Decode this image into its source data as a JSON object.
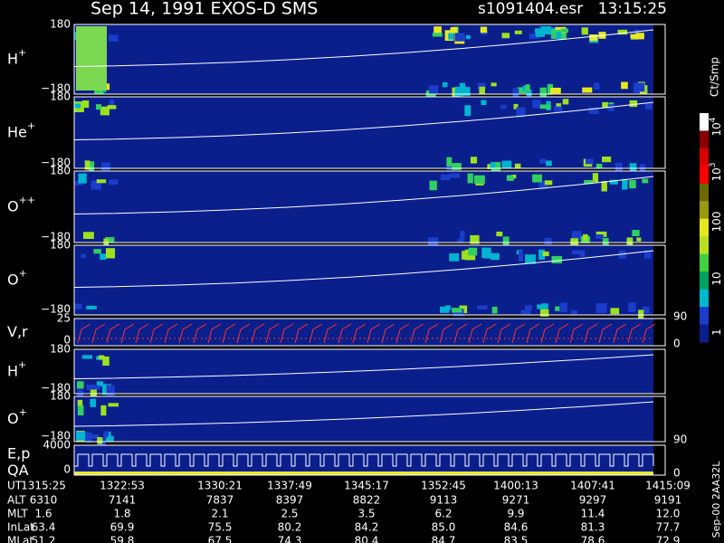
{
  "header": {
    "title": "Sep 14, 1991   EXOS-D SMS",
    "file": "s1091404.esr",
    "time": "13:15:25"
  },
  "panels": [
    {
      "label": "H",
      "sup": "+",
      "top": "180",
      "bottom": "−180"
    },
    {
      "label": "He",
      "sup": "+",
      "top": "180",
      "bottom": "−180"
    },
    {
      "label": "O",
      "sup": "++",
      "top": "180",
      "bottom": "−180"
    },
    {
      "label": "O",
      "sup": "+",
      "top": "180",
      "bottom": "−180"
    },
    {
      "label": "V,r",
      "top": "25",
      "bottom": "0",
      "right_top": "90",
      "right_bottom": "0"
    },
    {
      "label": "H",
      "sup": "+",
      "top": "180",
      "bottom": "−180"
    },
    {
      "label": "O",
      "sup": "+",
      "top": "180",
      "bottom": "−180",
      "right_bottom": "90"
    },
    {
      "label": "E,p",
      "label2": "QA",
      "top": "4000",
      "bottom": "0",
      "right_bottom": "0"
    }
  ],
  "colorbar": {
    "unit": "Ct/Smp",
    "labels": [
      {
        "base": "10",
        "exp": "4"
      },
      {
        "base": "10",
        "exp": "3"
      },
      "100",
      "10",
      "1"
    ]
  },
  "ephemeris": {
    "rows": [
      {
        "name": "UT",
        "values": [
          "1315:25",
          "1322:53",
          "1330:21",
          "1337:49",
          "1345:17",
          "1352:45",
          "1400:13",
          "1407:41",
          "1415:09"
        ]
      },
      {
        "name": "ALT",
        "values": [
          "6310",
          "7141",
          "7837",
          "8397",
          "8822",
          "9113",
          "9271",
          "9297",
          "9191"
        ]
      },
      {
        "name": "MLT",
        "values": [
          "1.6",
          "1.8",
          "2.1",
          "2.5",
          "3.5",
          "6.2",
          "9.9",
          "11.4",
          "12.0"
        ]
      },
      {
        "name": "InLat",
        "values": [
          "63.4",
          "69.9",
          "75.5",
          "80.2",
          "84.2",
          "85.0",
          "84.6",
          "81.3",
          "77.7"
        ]
      },
      {
        "name": "MLat",
        "values": [
          "51.2",
          "59.8",
          "67.5",
          "74.3",
          "80.4",
          "84.7",
          "83.5",
          "78.6",
          "72.9"
        ]
      }
    ]
  },
  "footer": "Sep-00  2AA32L"
}
